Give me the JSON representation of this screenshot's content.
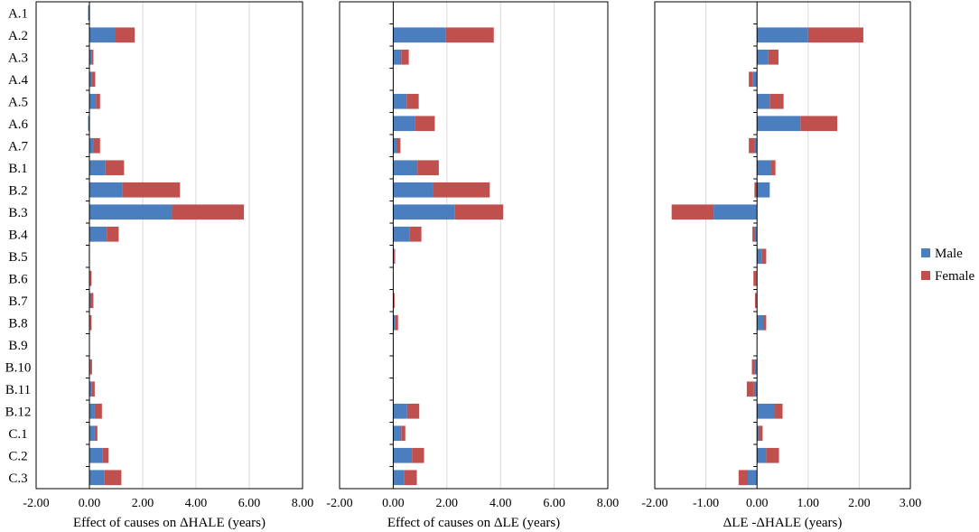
{
  "colors": {
    "male": "#4a7ebf",
    "female": "#c0504d",
    "grid": "#d9d9d9",
    "frame": "#000000"
  },
  "legend": [
    {
      "key": "male",
      "label": "Male"
    },
    {
      "key": "female",
      "label": "Female"
    }
  ],
  "chart_data": {
    "type": "bar",
    "orientation": "horizontal",
    "stacked": true,
    "categories": [
      "A.1",
      "A.2",
      "A.3",
      "A.4",
      "A.5",
      "A.6",
      "A.7",
      "B.1",
      "B.2",
      "B.3",
      "B.4",
      "B.5",
      "B.6",
      "B.7",
      "B.8",
      "B.9",
      "B.10",
      "B.11",
      "B.12",
      "C.1",
      "C.2",
      "C.3"
    ],
    "panels": [
      {
        "xlabel": "Effect of causes on ΔHALE (years)",
        "xlim": [
          -2,
          8
        ],
        "ticks": [
          -2,
          0,
          2,
          4,
          6,
          8
        ],
        "tick_labels": [
          "-2.00",
          "0.00",
          "2.00",
          "4.00",
          "6.00",
          "8.00"
        ],
        "series": [
          {
            "name": "Male",
            "values": [
              -0.05,
              0.95,
              0.08,
              0.1,
              0.25,
              -0.05,
              0.15,
              0.6,
              1.25,
              3.1,
              0.65,
              -0.02,
              0.02,
              0.05,
              0.03,
              0.0,
              0.04,
              0.08,
              0.2,
              0.2,
              0.5,
              0.55
            ]
          },
          {
            "name": "Female",
            "values": [
              0.0,
              0.75,
              0.07,
              0.12,
              0.15,
              0.0,
              0.25,
              0.7,
              2.15,
              2.7,
              0.45,
              0.0,
              0.06,
              0.1,
              0.05,
              0.0,
              0.06,
              0.12,
              0.27,
              0.1,
              0.22,
              0.65
            ]
          }
        ]
      },
      {
        "xlabel": "Effect of causes on ΔLE (years)",
        "xlim": [
          -2,
          8
        ],
        "ticks": [
          -2,
          0,
          2,
          4,
          6,
          8
        ],
        "tick_labels": [
          "-2.00",
          "0.00",
          "2.00",
          "4.00",
          "6.00",
          "8.00"
        ],
        "series": [
          {
            "name": "Male",
            "values": [
              0.0,
              1.95,
              0.3,
              0.0,
              0.5,
              0.8,
              0.12,
              0.9,
              1.5,
              2.3,
              0.6,
              0.03,
              0.0,
              0.02,
              0.08,
              0.0,
              0.0,
              0.0,
              0.52,
              0.3,
              0.7,
              0.4
            ]
          },
          {
            "name": "Female",
            "values": [
              0.0,
              1.8,
              0.28,
              0.0,
              0.45,
              0.75,
              0.15,
              0.8,
              2.1,
              1.8,
              0.45,
              0.04,
              0.0,
              0.03,
              0.1,
              0.0,
              0.0,
              0.0,
              0.45,
              0.15,
              0.45,
              0.48
            ]
          }
        ]
      },
      {
        "xlabel": "ΔLE -ΔHALE (years)",
        "xlim": [
          -2,
          3
        ],
        "ticks": [
          -2,
          -1,
          0,
          1,
          2,
          3
        ],
        "tick_labels": [
          "-2.00",
          "-1.00",
          "0.00",
          "1.00",
          "2.00",
          "3.00"
        ],
        "series": [
          {
            "name": "Male",
            "values": [
              0.0,
              1.0,
              0.22,
              -0.08,
              0.25,
              0.85,
              -0.04,
              0.28,
              0.25,
              -0.85,
              -0.04,
              0.1,
              -0.02,
              -0.01,
              0.12,
              0.0,
              -0.04,
              -0.06,
              0.35,
              0.04,
              0.18,
              -0.18
            ]
          },
          {
            "name": "Female",
            "values": [
              0.0,
              1.08,
              0.2,
              -0.08,
              0.27,
              0.72,
              -0.12,
              0.08,
              -0.05,
              -0.82,
              -0.05,
              0.08,
              -0.05,
              -0.03,
              0.06,
              0.0,
              -0.06,
              -0.14,
              0.15,
              0.07,
              0.25,
              -0.18
            ]
          }
        ]
      }
    ]
  }
}
